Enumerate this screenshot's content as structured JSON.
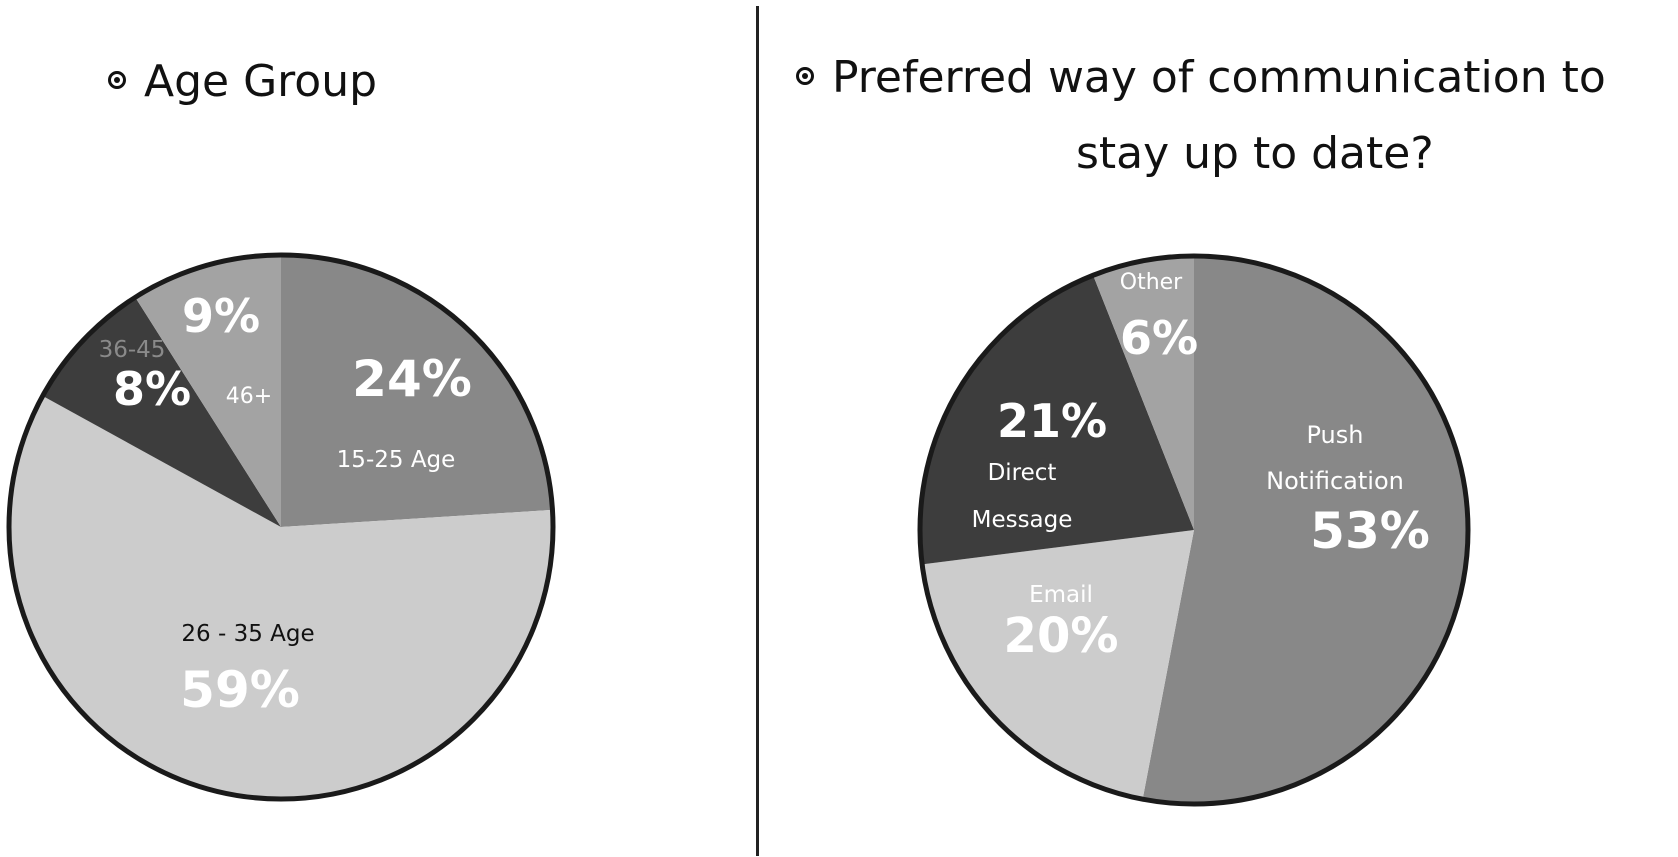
{
  "titles": {
    "left": "Age Group",
    "right_line1": "Preferred way of communication to",
    "right_line2": "stay up to date?"
  },
  "chart_data": [
    {
      "type": "pie",
      "title": "Age Group",
      "start_angle_deg": 0,
      "direction": "clockwise",
      "slices": [
        {
          "label": "15-25 Age",
          "value": 24,
          "value_label": "24%",
          "color": "#888888",
          "label_color": "#ffffff"
        },
        {
          "label": "26 - 35 Age",
          "value": 59,
          "value_label": "59%",
          "color": "#cccccc",
          "label_color": "#111111"
        },
        {
          "label": "36-45",
          "value": 8,
          "value_label": "8%",
          "color": "#3d3d3d",
          "label_color": "#8a8a8a"
        },
        {
          "label": "46+",
          "value": 9,
          "value_label": "9%",
          "color": "#a3a3a3",
          "label_color": "#ffffff"
        }
      ]
    },
    {
      "type": "pie",
      "title": "Preferred way of communication to stay up to date?",
      "start_angle_deg": 0,
      "direction": "clockwise",
      "slices": [
        {
          "label": "Push Notification",
          "value": 53,
          "value_label": "53%",
          "color": "#888888",
          "label_color": "#ffffff"
        },
        {
          "label": "Email",
          "value": 20,
          "value_label": "20%",
          "color": "#cccccc",
          "label_color": "#ffffff"
        },
        {
          "label": "Direct Message",
          "value": 21,
          "value_label": "21%",
          "color": "#3d3d3d",
          "label_color": "#ffffff"
        },
        {
          "label": "Other",
          "value": 6,
          "value_label": "6%",
          "color": "#a3a3a3",
          "label_color": "#ffffff"
        }
      ]
    }
  ]
}
